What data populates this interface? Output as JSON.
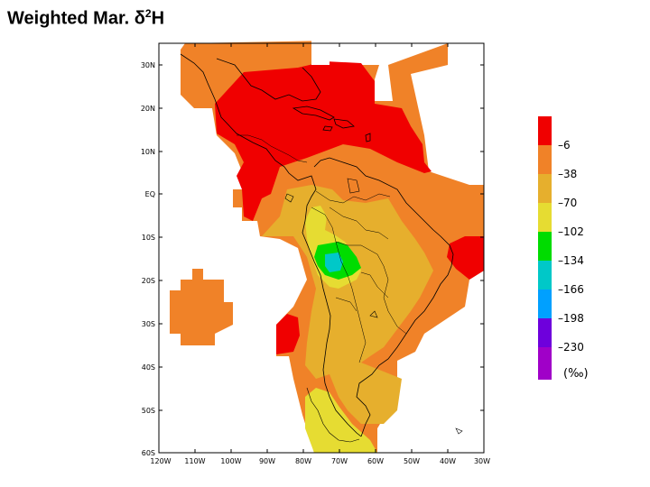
{
  "title": {
    "main": "Weighted Mar. ",
    "symbol": "δ",
    "superscript": "2",
    "suffix": "H"
  },
  "axes": {
    "lat_labels": [
      "30N",
      "20N",
      "10N",
      "EQ",
      "10S",
      "20S",
      "30S",
      "40S",
      "50S",
      "60S"
    ],
    "lon_labels": [
      "120W",
      "110W",
      "100W",
      "90W",
      "80W",
      "70W",
      "60W",
      "50W",
      "40W",
      "30W"
    ]
  },
  "legend": {
    "labels": [
      "-6",
      "-38",
      "-70",
      "-102",
      "-134",
      "-166",
      "-198",
      "-230"
    ],
    "unit": "(‰)",
    "colors": [
      "#f00000",
      "#f08228",
      "#e6af2d",
      "#e6dc32",
      "#00dc00",
      "#00c8c8",
      "#00a0ff",
      "#6e00dc",
      "#a000c8"
    ]
  },
  "map": {
    "extent": {
      "lon": [
        -120,
        -30
      ],
      "lat": [
        -60,
        35
      ]
    },
    "fill_colors": {
      "above_-6": "#f00000",
      "-38_to_-6": "#f08228",
      "-70_to_-38": "#e6af2d",
      "-102_to_-70": "#e6dc32",
      "-134_to_-102": "#00dc00",
      "-166_to_-134": "#00c8c8"
    },
    "coastline_color": "#000000"
  }
}
